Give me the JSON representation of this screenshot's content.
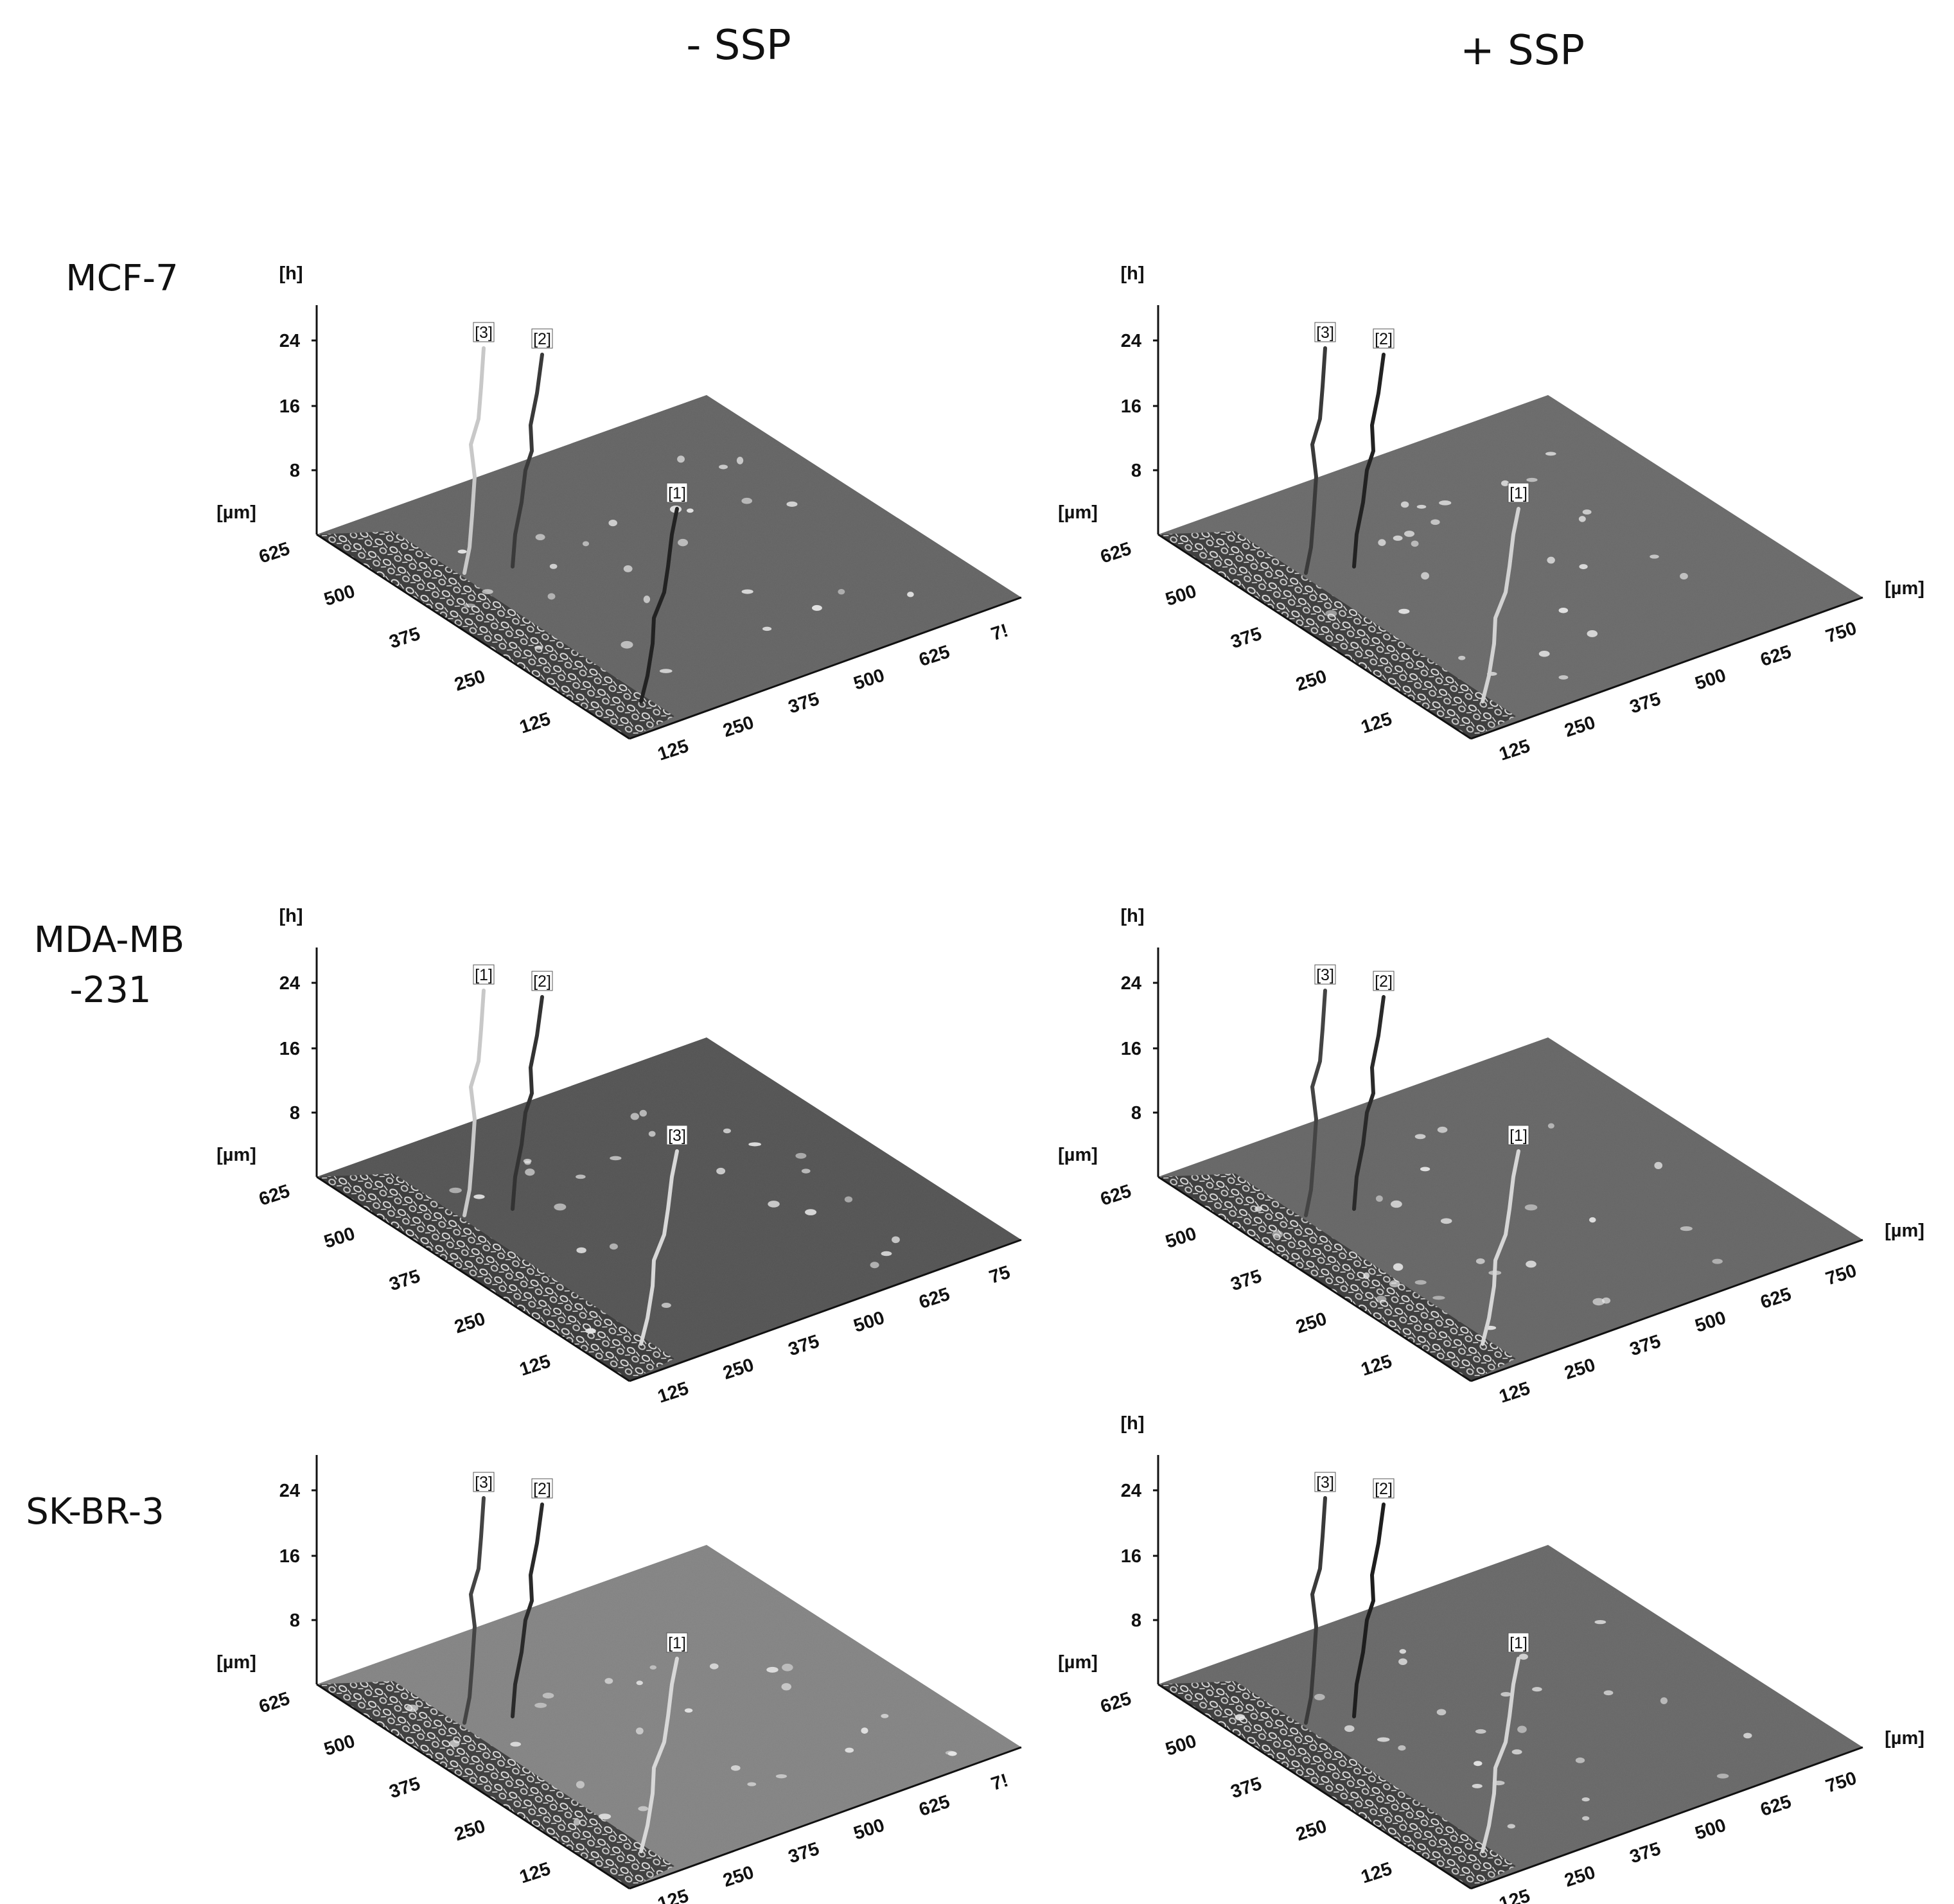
{
  "conditions": [
    "- SSP",
    "+ SSP"
  ],
  "rows": [
    {
      "label_lines": [
        "MCF-7"
      ]
    },
    {
      "label_lines": [
        "MDA-MB",
        "-231"
      ]
    },
    {
      "label_lines": [
        "SK-BR-3"
      ]
    }
  ],
  "axes": {
    "z_unit": "[h]",
    "y_unit": "[µm]",
    "x_unit": "[µm]",
    "z_ticks": [
      "8",
      "16",
      "24"
    ],
    "y_ticks": [
      "625",
      "500",
      "375",
      "250",
      "125"
    ],
    "x_ticks": [
      "125",
      "250",
      "375",
      "500",
      "625",
      "750"
    ],
    "x_ticks_truncated": [
      "125",
      "250",
      "375",
      "500",
      "625",
      "7!"
    ],
    "x_ticks_truncated_b": [
      "125",
      "250",
      "375",
      "500",
      "625",
      "75"
    ]
  },
  "panels": [
    {
      "row": 0,
      "col": 0,
      "z_unit_shown": true,
      "x_unit_shown": false,
      "x_tick_set": "x_ticks_truncated",
      "surface_tone": "#6a6a6a",
      "tracks": [
        {
          "label": "[3]",
          "color": "#c8c8c8"
        },
        {
          "label": "[2]",
          "color": "#3a3a3a"
        },
        {
          "label": "[1]",
          "color": "#222222"
        }
      ]
    },
    {
      "row": 0,
      "col": 1,
      "z_unit_shown": true,
      "x_unit_shown": true,
      "x_tick_set": "x_ticks",
      "surface_tone": "#707070",
      "tracks": [
        {
          "label": "[3]",
          "color": "#3a3a3a"
        },
        {
          "label": "[2]",
          "color": "#222222"
        },
        {
          "label": "[1]",
          "color": "#d2d2d2"
        }
      ]
    },
    {
      "row": 1,
      "col": 0,
      "z_unit_shown": true,
      "x_unit_shown": false,
      "x_tick_set": "x_ticks_truncated_b",
      "surface_tone": "#5a5a5a",
      "tracks": [
        {
          "label": "[1]",
          "color": "#c8c8c8"
        },
        {
          "label": "[2]",
          "color": "#333333"
        },
        {
          "label": "[3]",
          "color": "#d8d8d8"
        }
      ]
    },
    {
      "row": 1,
      "col": 1,
      "z_unit_shown": true,
      "x_unit_shown": true,
      "x_tick_set": "x_ticks",
      "surface_tone": "#6c6c6c",
      "tracks": [
        {
          "label": "[3]",
          "color": "#444444"
        },
        {
          "label": "[2]",
          "color": "#2a2a2a"
        },
        {
          "label": "[1]",
          "color": "#d6d6d6"
        }
      ]
    },
    {
      "row": 2,
      "col": 0,
      "z_unit_shown": false,
      "x_unit_shown": false,
      "x_tick_set": "x_ticks_truncated",
      "surface_tone": "#8a8a8a",
      "tracks": [
        {
          "label": "[3]",
          "color": "#444444"
        },
        {
          "label": "[2]",
          "color": "#2a2a2a"
        },
        {
          "label": "[1]",
          "color": "#d8d8d8"
        }
      ]
    },
    {
      "row": 2,
      "col": 1,
      "z_unit_shown": true,
      "x_unit_shown": true,
      "x_tick_set": "x_ticks",
      "surface_tone": "#6e6e6e",
      "tracks": [
        {
          "label": "[3]",
          "color": "#3a3a3a"
        },
        {
          "label": "[2]",
          "color": "#1e1e1e"
        },
        {
          "label": "[1]",
          "color": "#d4d4d4"
        }
      ]
    }
  ]
}
